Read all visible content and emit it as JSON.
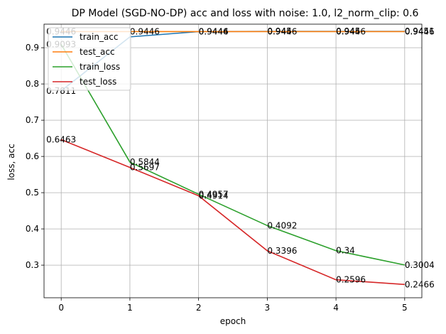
{
  "chart_data": {
    "type": "line",
    "title": "DP Model (SGD-NO-DP) acc and loss with noise: 1.0, l2_norm_clip: 0.6",
    "xlabel": "epoch",
    "ylabel": "loss, acc",
    "x": [
      0,
      1,
      2,
      3,
      4,
      5
    ],
    "xlim": [
      -0.25,
      5.25
    ],
    "ylim": [
      0.21,
      0.965
    ],
    "xticks": [
      0,
      1,
      2,
      3,
      4,
      5
    ],
    "yticks": [
      0.3,
      0.4,
      0.5,
      0.6,
      0.7,
      0.8,
      0.9
    ],
    "ytick_labels": [
      "0.3",
      "0.4",
      "0.5",
      "0.6",
      "0.7",
      "0.8",
      "0.9"
    ],
    "grid": true,
    "legend": "top-left",
    "series": [
      {
        "name": "train_acc",
        "color": "#1f77b4",
        "values": [
          0.7811,
          0.93,
          0.9444,
          0.945,
          0.945,
          0.9451
        ],
        "labels": [
          "0.7811",
          "",
          "0.9444",
          "0.945",
          "0.945",
          "0.9451"
        ]
      },
      {
        "name": "test_acc",
        "color": "#ff7f0e",
        "values": [
          0.9446,
          0.9446,
          0.9446,
          0.9446,
          0.9446,
          0.9446
        ],
        "labels": [
          "0.9446",
          "0.9446",
          "0.9446",
          "0.9446",
          "0.9446",
          "0.9446"
        ]
      },
      {
        "name": "train_loss",
        "color": "#2ca02c",
        "values": [
          0.9093,
          0.5844,
          0.4957,
          0.4092,
          0.34,
          0.3004
        ],
        "labels": [
          "0.9093",
          "0.5844",
          "0.4957",
          "0.4092",
          "0.34",
          "0.3004"
        ]
      },
      {
        "name": "test_loss",
        "color": "#d62728",
        "values": [
          0.6463,
          0.5697,
          0.4914,
          0.3396,
          0.2596,
          0.2466
        ],
        "labels": [
          "0.6463",
          "0.5697",
          "0.4914",
          "0.3396",
          "0.2596",
          "0.2466"
        ]
      }
    ]
  }
}
